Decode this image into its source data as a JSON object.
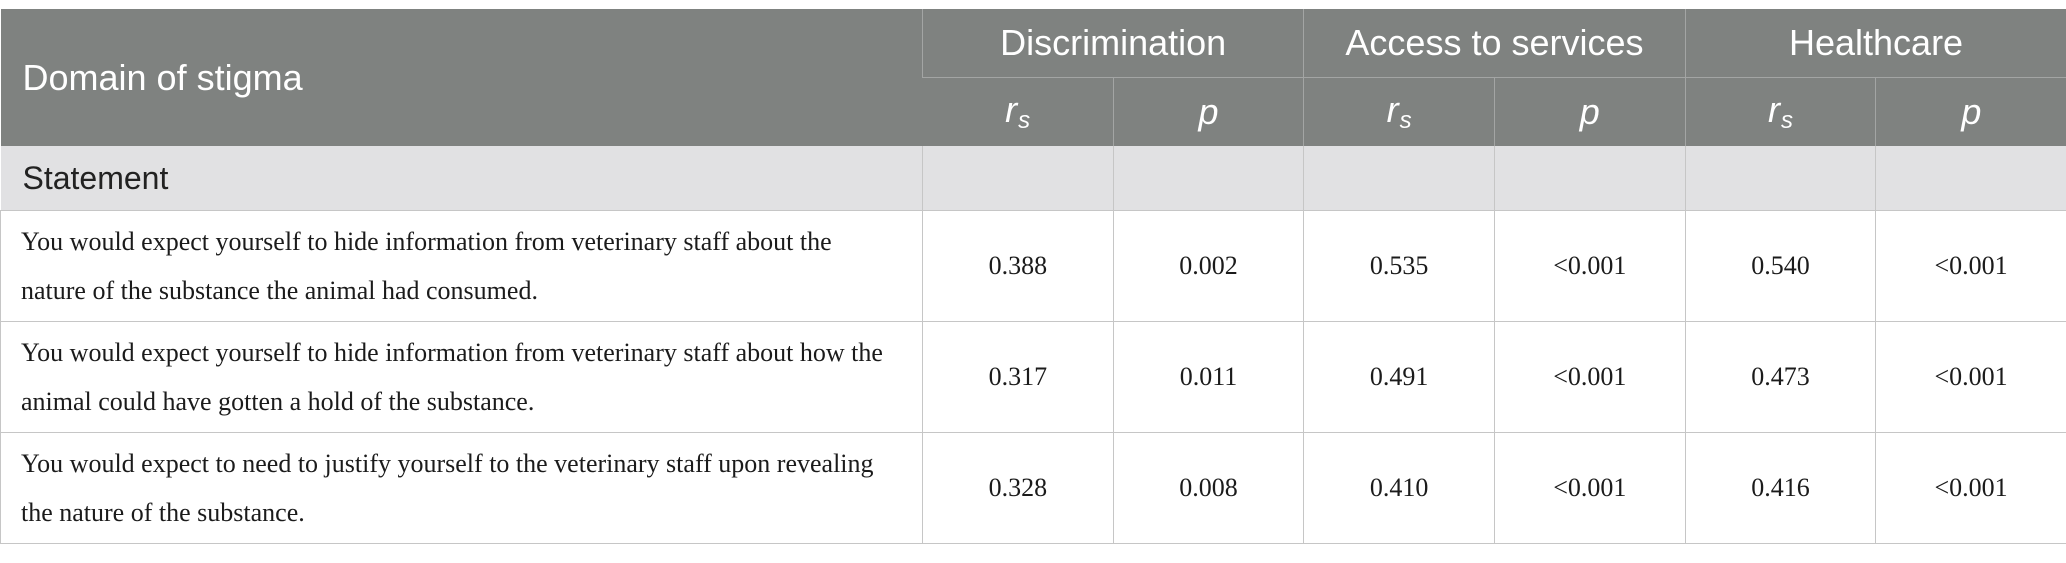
{
  "table": {
    "header": {
      "domain_label": "Domain of stigma",
      "groups": [
        "Discrimination",
        "Access to services",
        "Healthcare"
      ],
      "stat_r": "r",
      "stat_r_sub": "s",
      "stat_p": "p"
    },
    "section_label": "Statement",
    "rows": [
      {
        "statement": "You would expect yourself to hide information from veterinary staff about the nature of the substance the animal had consumed.",
        "values": [
          "0.388",
          "0.002",
          "0.535",
          "<0.001",
          "0.540",
          "<0.001"
        ]
      },
      {
        "statement": "You would expect yourself to hide information from veterinary staff about how the animal could have gotten a hold of the substance.",
        "values": [
          "0.317",
          "0.011",
          "0.491",
          "<0.001",
          "0.473",
          "<0.001"
        ]
      },
      {
        "statement": "You would expect to need to justify yourself to the veterinary staff upon revealing the nature of the substance.",
        "values": [
          "0.328",
          "0.008",
          "0.410",
          "<0.001",
          "0.416",
          "<0.001"
        ]
      }
    ]
  }
}
